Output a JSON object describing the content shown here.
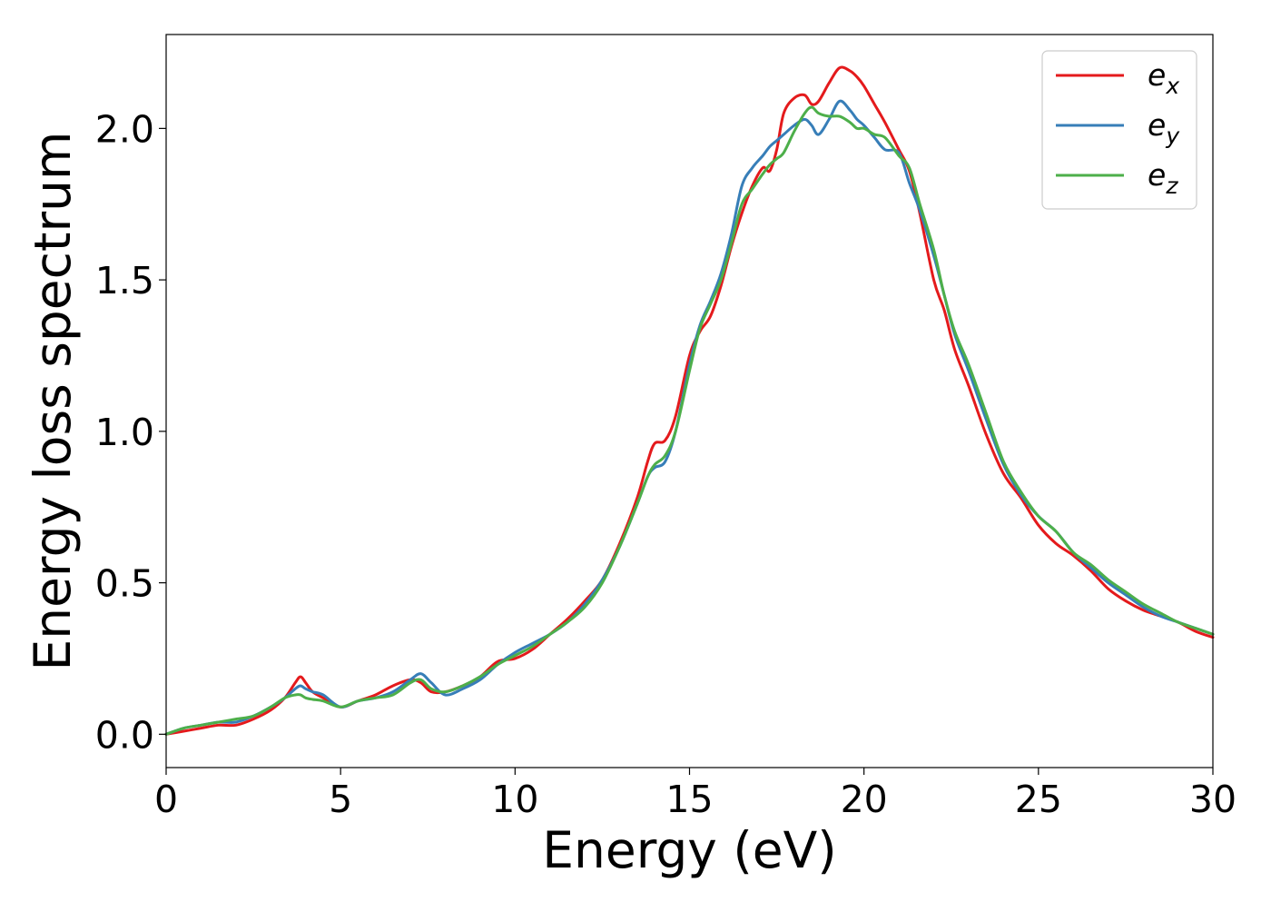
{
  "chart_data": {
    "type": "line",
    "title": "",
    "xlabel": "Energy (eV)",
    "ylabel": "Energy loss spectrum",
    "xlim": [
      0,
      30
    ],
    "ylim": [
      -0.11,
      2.31
    ],
    "xticks": [
      0,
      5,
      10,
      15,
      20,
      25,
      30
    ],
    "xtick_labels": [
      "0",
      "5",
      "10",
      "15",
      "20",
      "25",
      "30"
    ],
    "yticks": [
      0.0,
      0.5,
      1.0,
      1.5,
      2.0
    ],
    "ytick_labels": [
      "0.0",
      "0.5",
      "1.0",
      "1.5",
      "2.0"
    ],
    "grid": false,
    "legend_position": "top-right",
    "series": [
      {
        "name": "e_x",
        "label_main": "e",
        "label_sub": "x",
        "color": "#e41a1c",
        "x": [
          0,
          0.5,
          1,
          1.5,
          2,
          2.5,
          3,
          3.4,
          3.7,
          3.85,
          4.0,
          4.2,
          4.5,
          5.0,
          5.5,
          6.0,
          6.5,
          7.0,
          7.3,
          7.6,
          8.0,
          8.5,
          9.0,
          9.5,
          10,
          10.5,
          11,
          11.5,
          12,
          12.5,
          13,
          13.5,
          13.8,
          14.0,
          14.3,
          14.6,
          15.0,
          15.3,
          15.6,
          15.9,
          16.2,
          16.5,
          16.8,
          17.1,
          17.3,
          17.5,
          17.7,
          18.0,
          18.3,
          18.5,
          18.7,
          19.0,
          19.3,
          19.6,
          19.8,
          20.0,
          20.3,
          20.6,
          21.0,
          21.3,
          21.6,
          22.0,
          22.3,
          22.6,
          23.0,
          23.5,
          24.0,
          24.5,
          25.0,
          25.5,
          26.0,
          26.5,
          27.0,
          27.5,
          28.0,
          28.5,
          29.0,
          29.5,
          30.0
        ],
        "y": [
          0.0,
          0.01,
          0.02,
          0.03,
          0.03,
          0.05,
          0.08,
          0.12,
          0.17,
          0.19,
          0.17,
          0.14,
          0.12,
          0.09,
          0.11,
          0.13,
          0.16,
          0.18,
          0.17,
          0.14,
          0.14,
          0.16,
          0.19,
          0.24,
          0.25,
          0.28,
          0.33,
          0.38,
          0.44,
          0.51,
          0.63,
          0.78,
          0.9,
          0.96,
          0.97,
          1.05,
          1.25,
          1.33,
          1.38,
          1.48,
          1.61,
          1.72,
          1.81,
          1.87,
          1.86,
          1.93,
          2.05,
          2.1,
          2.11,
          2.08,
          2.09,
          2.15,
          2.2,
          2.19,
          2.17,
          2.14,
          2.08,
          2.02,
          1.93,
          1.86,
          1.72,
          1.5,
          1.4,
          1.27,
          1.15,
          0.99,
          0.86,
          0.78,
          0.69,
          0.63,
          0.59,
          0.54,
          0.48,
          0.44,
          0.41,
          0.39,
          0.37,
          0.34,
          0.32
        ]
      },
      {
        "name": "e_y",
        "label_main": "e",
        "label_sub": "y",
        "color": "#377eb8",
        "x": [
          0,
          0.5,
          1,
          1.5,
          2,
          2.5,
          3,
          3.4,
          3.7,
          3.85,
          4.0,
          4.2,
          4.5,
          5.0,
          5.5,
          6.0,
          6.5,
          7.0,
          7.3,
          7.6,
          8.0,
          8.5,
          9.0,
          9.5,
          10,
          10.5,
          11,
          11.5,
          12,
          12.5,
          13,
          13.5,
          13.8,
          14.0,
          14.3,
          14.6,
          15.0,
          15.3,
          15.6,
          15.9,
          16.2,
          16.5,
          16.8,
          17.1,
          17.3,
          17.5,
          17.7,
          18.0,
          18.3,
          18.5,
          18.7,
          19.0,
          19.3,
          19.6,
          19.8,
          20.0,
          20.3,
          20.6,
          21.0,
          21.3,
          21.6,
          22.0,
          22.3,
          22.6,
          23.0,
          23.5,
          24.0,
          24.5,
          25.0,
          25.5,
          26.0,
          26.5,
          27.0,
          27.5,
          28.0,
          28.5,
          29.0,
          29.5,
          30.0
        ],
        "y": [
          0.0,
          0.02,
          0.03,
          0.04,
          0.04,
          0.06,
          0.09,
          0.12,
          0.15,
          0.16,
          0.15,
          0.14,
          0.13,
          0.09,
          0.11,
          0.12,
          0.14,
          0.18,
          0.2,
          0.17,
          0.13,
          0.15,
          0.18,
          0.23,
          0.27,
          0.3,
          0.33,
          0.37,
          0.43,
          0.51,
          0.62,
          0.76,
          0.85,
          0.88,
          0.9,
          1.0,
          1.22,
          1.35,
          1.43,
          1.52,
          1.65,
          1.81,
          1.87,
          1.91,
          1.94,
          1.96,
          1.98,
          2.01,
          2.03,
          2.01,
          1.98,
          2.03,
          2.09,
          2.06,
          2.03,
          2.01,
          1.97,
          1.93,
          1.92,
          1.82,
          1.73,
          1.58,
          1.45,
          1.32,
          1.2,
          1.04,
          0.89,
          0.79,
          0.72,
          0.67,
          0.6,
          0.55,
          0.5,
          0.46,
          0.42,
          0.39,
          0.37,
          0.35,
          0.33
        ]
      },
      {
        "name": "e_z",
        "label_main": "e",
        "label_sub": "z",
        "color": "#4daf4a",
        "x": [
          0,
          0.5,
          1,
          1.5,
          2,
          2.5,
          3,
          3.4,
          3.7,
          3.85,
          4.0,
          4.2,
          4.5,
          5.0,
          5.5,
          6.0,
          6.5,
          7.0,
          7.3,
          7.6,
          8.0,
          8.5,
          9.0,
          9.5,
          10,
          10.5,
          11,
          11.5,
          12,
          12.5,
          13,
          13.5,
          13.8,
          14.0,
          14.3,
          14.6,
          15.0,
          15.3,
          15.6,
          15.9,
          16.2,
          16.5,
          16.8,
          17.1,
          17.3,
          17.5,
          17.7,
          18.0,
          18.3,
          18.5,
          18.7,
          19.0,
          19.3,
          19.6,
          19.8,
          20.0,
          20.3,
          20.6,
          21.0,
          21.3,
          21.6,
          22.0,
          22.3,
          22.6,
          23.0,
          23.5,
          24.0,
          24.5,
          25.0,
          25.5,
          26.0,
          26.5,
          27.0,
          27.5,
          28.0,
          28.5,
          29.0,
          29.5,
          30.0
        ],
        "y": [
          0.0,
          0.02,
          0.03,
          0.04,
          0.05,
          0.06,
          0.09,
          0.12,
          0.13,
          0.13,
          0.12,
          0.115,
          0.11,
          0.09,
          0.11,
          0.12,
          0.13,
          0.17,
          0.18,
          0.15,
          0.14,
          0.16,
          0.19,
          0.23,
          0.26,
          0.29,
          0.33,
          0.37,
          0.42,
          0.5,
          0.62,
          0.76,
          0.85,
          0.89,
          0.92,
          1.0,
          1.2,
          1.34,
          1.42,
          1.5,
          1.62,
          1.75,
          1.8,
          1.85,
          1.88,
          1.9,
          1.92,
          1.99,
          2.05,
          2.07,
          2.05,
          2.04,
          2.04,
          2.02,
          2.0,
          2.0,
          1.98,
          1.97,
          1.91,
          1.87,
          1.75,
          1.6,
          1.45,
          1.33,
          1.22,
          1.06,
          0.9,
          0.8,
          0.72,
          0.67,
          0.6,
          0.56,
          0.51,
          0.47,
          0.43,
          0.4,
          0.37,
          0.35,
          0.33
        ]
      }
    ]
  }
}
